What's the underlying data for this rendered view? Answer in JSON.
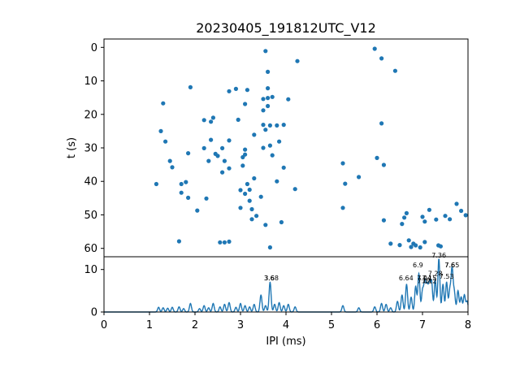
{
  "chart_data": [
    {
      "type": "scatter",
      "title": "20230405_191812UTC_V12",
      "xlabel": "",
      "ylabel": "t (s)",
      "xlim": [
        0,
        8
      ],
      "ylim": [
        62.5,
        -2.5
      ],
      "yticks": [
        "0",
        "10",
        "20",
        "30",
        "40",
        "50",
        "60"
      ],
      "color": "#1f77b4",
      "points": [
        [
          1.15,
          40.8
        ],
        [
          1.25,
          25
        ],
        [
          1.3,
          16.7
        ],
        [
          1.35,
          28.1
        ],
        [
          1.45,
          33.9
        ],
        [
          1.5,
          35.8
        ],
        [
          1.65,
          57.9
        ],
        [
          1.7,
          43.4
        ],
        [
          1.7,
          40.8
        ],
        [
          1.8,
          40.2
        ],
        [
          1.85,
          44.9
        ],
        [
          1.85,
          31.6
        ],
        [
          1.9,
          11.9
        ],
        [
          2.05,
          48.7
        ],
        [
          2.2,
          30.1
        ],
        [
          2.2,
          21.7
        ],
        [
          2.25,
          45.1
        ],
        [
          2.3,
          33.9
        ],
        [
          2.35,
          27.6
        ],
        [
          2.35,
          22.2
        ],
        [
          2.4,
          21
        ],
        [
          2.45,
          31.8
        ],
        [
          2.5,
          32.4
        ],
        [
          2.55,
          58.2
        ],
        [
          2.6,
          30.1
        ],
        [
          2.6,
          37.3
        ],
        [
          2.65,
          33.9
        ],
        [
          2.65,
          58.2
        ],
        [
          2.75,
          58
        ],
        [
          2.75,
          13.1
        ],
        [
          2.75,
          27.8
        ],
        [
          2.75,
          36.1
        ],
        [
          2.9,
          12.4
        ],
        [
          2.95,
          21.6
        ],
        [
          3.0,
          42.6
        ],
        [
          3.0,
          47.9
        ],
        [
          3.05,
          35.3
        ],
        [
          3.05,
          32.8
        ],
        [
          3.1,
          30.5
        ],
        [
          3.1,
          32
        ],
        [
          3.15,
          12.7
        ],
        [
          3.1,
          16.9
        ],
        [
          3.15,
          40.8
        ],
        [
          3.1,
          43.7
        ],
        [
          3.2,
          45.8
        ],
        [
          3.2,
          42.5
        ],
        [
          3.25,
          48.3
        ],
        [
          3.25,
          51.3
        ],
        [
          3.3,
          39.1
        ],
        [
          3.3,
          26.1
        ],
        [
          3.35,
          50.3
        ],
        [
          3.45,
          44.6
        ],
        [
          3.5,
          23.1
        ],
        [
          3.5,
          30
        ],
        [
          3.5,
          18.8
        ],
        [
          3.5,
          15.4
        ],
        [
          3.55,
          53
        ],
        [
          3.55,
          1.1
        ],
        [
          3.55,
          24.6
        ],
        [
          3.6,
          12.2
        ],
        [
          3.6,
          7.3
        ],
        [
          3.6,
          15.1
        ],
        [
          3.6,
          17.5
        ],
        [
          3.65,
          59.7
        ],
        [
          3.65,
          23.3
        ],
        [
          3.65,
          29.3
        ],
        [
          3.7,
          14.8
        ],
        [
          3.7,
          32.2
        ],
        [
          3.8,
          23.3
        ],
        [
          3.8,
          40
        ],
        [
          3.85,
          28.1
        ],
        [
          3.9,
          52.2
        ],
        [
          3.95,
          23.1
        ],
        [
          3.95,
          35.9
        ],
        [
          4.05,
          15.5
        ],
        [
          4.2,
          42.3
        ],
        [
          4.25,
          4.1
        ],
        [
          5.25,
          34.6
        ],
        [
          5.25,
          47.9
        ],
        [
          5.3,
          40.7
        ],
        [
          5.6,
          38.7
        ],
        [
          5.95,
          0.4
        ],
        [
          6.0,
          33
        ],
        [
          6.1,
          22.7
        ],
        [
          6.1,
          3.3
        ],
        [
          6.15,
          35.1
        ],
        [
          6.15,
          51.6
        ],
        [
          6.3,
          58.6
        ],
        [
          6.4,
          7
        ],
        [
          6.5,
          59
        ],
        [
          6.55,
          52.7
        ],
        [
          6.6,
          50.8
        ],
        [
          6.65,
          49.5
        ],
        [
          6.7,
          57.6
        ],
        [
          6.75,
          59.6
        ],
        [
          6.8,
          58.6
        ],
        [
          6.85,
          59.1
        ],
        [
          6.95,
          59.7
        ],
        [
          7.05,
          58.1
        ],
        [
          7.0,
          50.6
        ],
        [
          7.05,
          52
        ],
        [
          7.15,
          48.5
        ],
        [
          7.3,
          51.4
        ],
        [
          7.35,
          59.1
        ],
        [
          7.4,
          59.4
        ],
        [
          7.5,
          50.3
        ],
        [
          7.6,
          51.3
        ],
        [
          7.75,
          46.7
        ],
        [
          7.85,
          48.8
        ],
        [
          7.95,
          50.1
        ]
      ]
    },
    {
      "type": "line",
      "xlabel": "IPI (ms)",
      "ylabel": "",
      "xlim": [
        0,
        8
      ],
      "ylim": [
        0,
        13
      ],
      "xticks": [
        "0",
        "1",
        "2",
        "3",
        "4",
        "5",
        "6",
        "7",
        "8"
      ],
      "yticks": [
        "0",
        "10"
      ],
      "color": "#1f77b4",
      "peaks": [
        {
          "x": 1.2,
          "y": 1.1
        },
        {
          "x": 1.3,
          "y": 1.0
        },
        {
          "x": 1.4,
          "y": 0.9
        },
        {
          "x": 1.5,
          "y": 1.1
        },
        {
          "x": 1.65,
          "y": 1.2
        },
        {
          "x": 1.75,
          "y": 0.8
        },
        {
          "x": 1.9,
          "y": 2.0
        },
        {
          "x": 2.1,
          "y": 0.8
        },
        {
          "x": 2.2,
          "y": 1.5
        },
        {
          "x": 2.3,
          "y": 1.0
        },
        {
          "x": 2.4,
          "y": 2.0
        },
        {
          "x": 2.55,
          "y": 1.2
        },
        {
          "x": 2.65,
          "y": 1.8
        },
        {
          "x": 2.75,
          "y": 2.2
        },
        {
          "x": 2.9,
          "y": 1.1
        },
        {
          "x": 3.0,
          "y": 2.0
        },
        {
          "x": 3.1,
          "y": 1.5
        },
        {
          "x": 3.2,
          "y": 1.2
        },
        {
          "x": 3.3,
          "y": 1.8
        },
        {
          "x": 3.45,
          "y": 4.0
        },
        {
          "x": 3.55,
          "y": 1.5
        },
        {
          "x": 3.65,
          "y": 7.0
        },
        {
          "x": 3.75,
          "y": 1.8
        },
        {
          "x": 3.85,
          "y": 2.2
        },
        {
          "x": 3.95,
          "y": 1.5
        },
        {
          "x": 4.05,
          "y": 1.8
        },
        {
          "x": 4.2,
          "y": 1.2
        },
        {
          "x": 5.25,
          "y": 1.5
        },
        {
          "x": 5.6,
          "y": 1.0
        },
        {
          "x": 5.95,
          "y": 1.2
        },
        {
          "x": 6.1,
          "y": 2.0
        },
        {
          "x": 6.2,
          "y": 1.8
        },
        {
          "x": 6.3,
          "y": 1.0
        },
        {
          "x": 6.45,
          "y": 2.5
        },
        {
          "x": 6.55,
          "y": 4.0
        },
        {
          "x": 6.65,
          "y": 6.5
        },
        {
          "x": 6.75,
          "y": 3.5
        },
        {
          "x": 6.85,
          "y": 6.0
        },
        {
          "x": 6.92,
          "y": 9.0
        },
        {
          "x": 7.0,
          "y": 5.0
        },
        {
          "x": 7.05,
          "y": 7.0
        },
        {
          "x": 7.1,
          "y": 6.0
        },
        {
          "x": 7.15,
          "y": 6.5
        },
        {
          "x": 7.2,
          "y": 7.0
        },
        {
          "x": 7.28,
          "y": 7.5
        },
        {
          "x": 7.36,
          "y": 12.5
        },
        {
          "x": 7.45,
          "y": 6.5
        },
        {
          "x": 7.53,
          "y": 7.0
        },
        {
          "x": 7.6,
          "y": 5.0
        },
        {
          "x": 7.65,
          "y": 10.0
        },
        {
          "x": 7.7,
          "y": 4.5
        },
        {
          "x": 7.78,
          "y": 5.0
        },
        {
          "x": 7.85,
          "y": 3.5
        },
        {
          "x": 7.92,
          "y": 4.0
        },
        {
          "x": 7.98,
          "y": 2.5
        }
      ],
      "annotations": [
        {
          "text": "3.68",
          "x": 3.68,
          "y": 7.5
        },
        {
          "text": "3.6",
          "x": 3.63,
          "y": 7.5
        },
        {
          "text": "6.64",
          "x": 6.64,
          "y": 7.5
        },
        {
          "text": "6.9",
          "x": 6.9,
          "y": 10.5
        },
        {
          "text": "7.0",
          "x": 7.0,
          "y": 6.8
        },
        {
          "text": "7.04",
          "x": 7.04,
          "y": 7.5
        },
        {
          "text": "7.1",
          "x": 7.1,
          "y": 6.8
        },
        {
          "text": "7.15",
          "x": 7.15,
          "y": 7.5
        },
        {
          "text": "7.2",
          "x": 7.2,
          "y": 6.8
        },
        {
          "text": "7.28",
          "x": 7.28,
          "y": 8.5
        },
        {
          "text": "7.36",
          "x": 7.36,
          "y": 12.8
        },
        {
          "text": "7.53",
          "x": 7.53,
          "y": 7.8
        },
        {
          "text": "7.6",
          "x": 7.6,
          "y": 10.5
        },
        {
          "text": "7.65",
          "x": 7.65,
          "y": 10.5
        }
      ]
    }
  ]
}
